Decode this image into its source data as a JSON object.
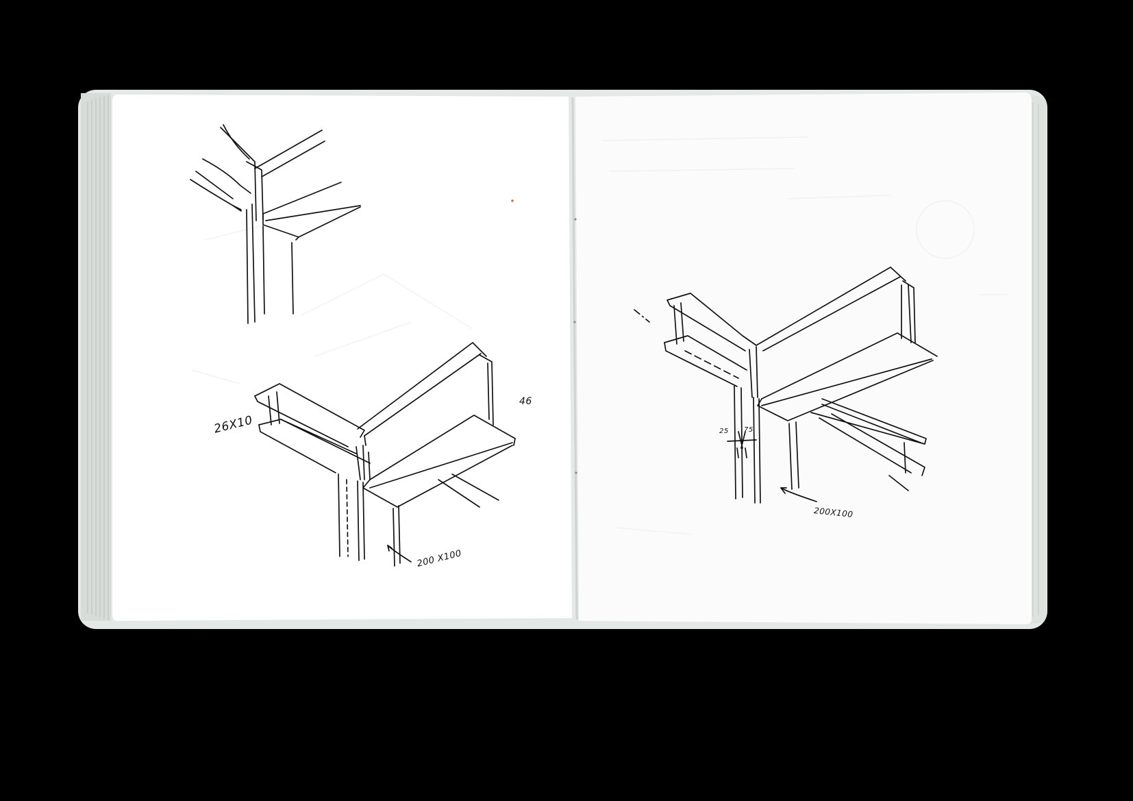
{
  "scene": "open-sketchbook",
  "left_page": {
    "annotations": {
      "flange_size": "26X10",
      "page_number": "46",
      "column_size": "200 X100"
    }
  },
  "right_page": {
    "annotations": {
      "dim_left": "25",
      "dim_right": "75",
      "column_size": "200X100"
    }
  },
  "colors": {
    "background": "#000000",
    "paper": "#ffffff",
    "cover": "#e9ecea",
    "ink": "#111111"
  }
}
